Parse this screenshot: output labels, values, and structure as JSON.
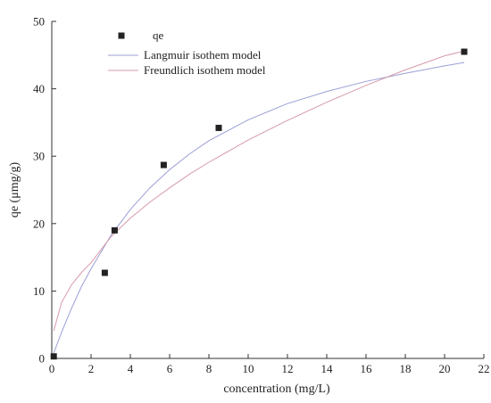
{
  "chart_data": {
    "type": "scatter",
    "title": "",
    "xlabel": "concentration  (mg/L)",
    "ylabel": "qe (μmg/g)",
    "xlim": [
      0,
      22
    ],
    "ylim": [
      0,
      50
    ],
    "x_ticks": [
      0,
      2,
      4,
      6,
      8,
      10,
      12,
      14,
      16,
      18,
      20,
      22
    ],
    "y_ticks": [
      0,
      10,
      20,
      30,
      40,
      50
    ],
    "grid": false,
    "legend_position": "top-left",
    "series": [
      {
        "name": "qe",
        "kind": "scatter",
        "marker": "square",
        "color": "#222222",
        "points": [
          {
            "x": 0.1,
            "y": 0.3
          },
          {
            "x": 2.7,
            "y": 12.7
          },
          {
            "x": 3.2,
            "y": 19.0
          },
          {
            "x": 5.7,
            "y": 28.7
          },
          {
            "x": 8.5,
            "y": 34.2
          },
          {
            "x": 21.0,
            "y": 45.5
          }
        ]
      },
      {
        "name": "Langmuir isothem model",
        "kind": "line",
        "color": "#9b9fd6",
        "points": [
          {
            "x": 0.1,
            "y": 0.8
          },
          {
            "x": 0.5,
            "y": 3.9
          },
          {
            "x": 1,
            "y": 7.4
          },
          {
            "x": 1.5,
            "y": 10.6
          },
          {
            "x": 2,
            "y": 13.3
          },
          {
            "x": 3,
            "y": 18.2
          },
          {
            "x": 4,
            "y": 22.1
          },
          {
            "x": 5,
            "y": 25.3
          },
          {
            "x": 6,
            "y": 28.0
          },
          {
            "x": 7,
            "y": 30.3
          },
          {
            "x": 8,
            "y": 32.3
          },
          {
            "x": 10,
            "y": 35.4
          },
          {
            "x": 12,
            "y": 37.8
          },
          {
            "x": 14,
            "y": 39.6
          },
          {
            "x": 16,
            "y": 41.1
          },
          {
            "x": 18,
            "y": 42.3
          },
          {
            "x": 20,
            "y": 43.4
          },
          {
            "x": 21,
            "y": 43.9
          }
        ]
      },
      {
        "name": "Freundlich isothem model",
        "kind": "line",
        "color": "#d59aaa",
        "points": [
          {
            "x": 0.1,
            "y": 4.1
          },
          {
            "x": 0.5,
            "y": 8.3
          },
          {
            "x": 1,
            "y": 10.9
          },
          {
            "x": 1.5,
            "y": 12.7
          },
          {
            "x": 2,
            "y": 14.2
          },
          {
            "x": 3,
            "y": 18.0
          },
          {
            "x": 4,
            "y": 20.8
          },
          {
            "x": 5,
            "y": 23.2
          },
          {
            "x": 6,
            "y": 25.3
          },
          {
            "x": 7,
            "y": 27.3
          },
          {
            "x": 8,
            "y": 29.1
          },
          {
            "x": 10,
            "y": 32.4
          },
          {
            "x": 12,
            "y": 35.3
          },
          {
            "x": 14,
            "y": 38.0
          },
          {
            "x": 16,
            "y": 40.5
          },
          {
            "x": 18,
            "y": 42.8
          },
          {
            "x": 20,
            "y": 44.9
          },
          {
            "x": 21,
            "y": 45.6
          }
        ]
      }
    ]
  }
}
